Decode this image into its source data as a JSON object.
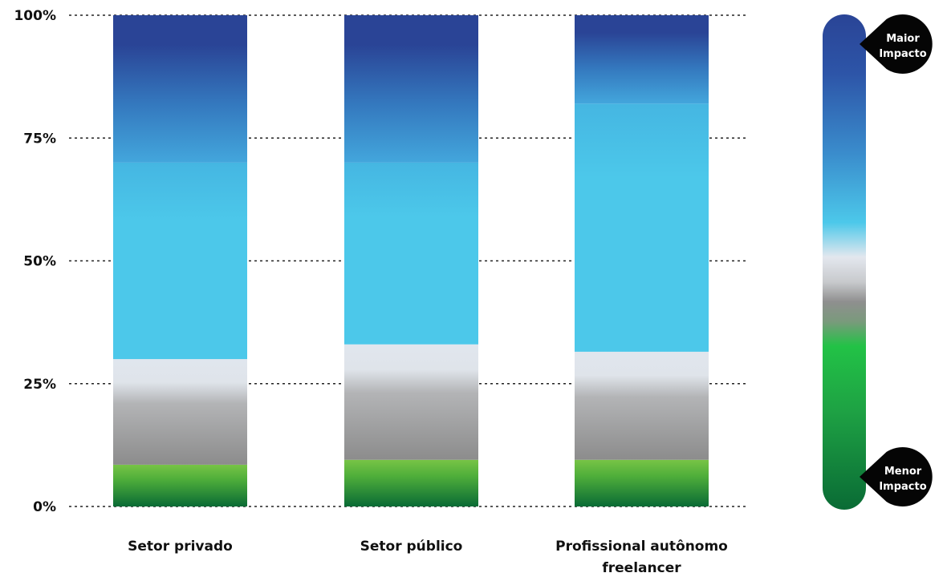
{
  "chart_data": {
    "type": "bar",
    "stacked": true,
    "categories": [
      "Setor privado",
      "Setor público",
      "Profissional autônomo freelancer"
    ],
    "category_lines": [
      [
        "Setor privado"
      ],
      [
        "Setor público"
      ],
      [
        "Profissional autônomo",
        "freelancer"
      ]
    ],
    "series": [
      {
        "color": "#0a6b35",
        "values": [
          8.5,
          9.5,
          9.5
        ]
      },
      {
        "color": "#9a9a9a",
        "values": [
          21.5,
          23.5,
          22
        ]
      },
      {
        "color": "#4cc8ea",
        "values": [
          40,
          37,
          50.5
        ]
      },
      {
        "color": "#2a4496",
        "values": [
          30,
          30,
          18
        ]
      }
    ],
    "yticks": [
      "0%",
      "25%",
      "50%",
      "75%",
      "100%"
    ],
    "ylim": [
      0,
      100
    ],
    "grid": true,
    "legend": {
      "type": "gradient",
      "placement": "right",
      "top_label_lines": [
        "Maior",
        "Impacto"
      ],
      "bottom_label_lines": [
        "Menor",
        "Impacto"
      ],
      "colors": [
        "#2a4496",
        "#4cc8ea",
        "#e3e7ee",
        "#8f8f8f",
        "#22c246",
        "#0a6b35"
      ]
    }
  }
}
